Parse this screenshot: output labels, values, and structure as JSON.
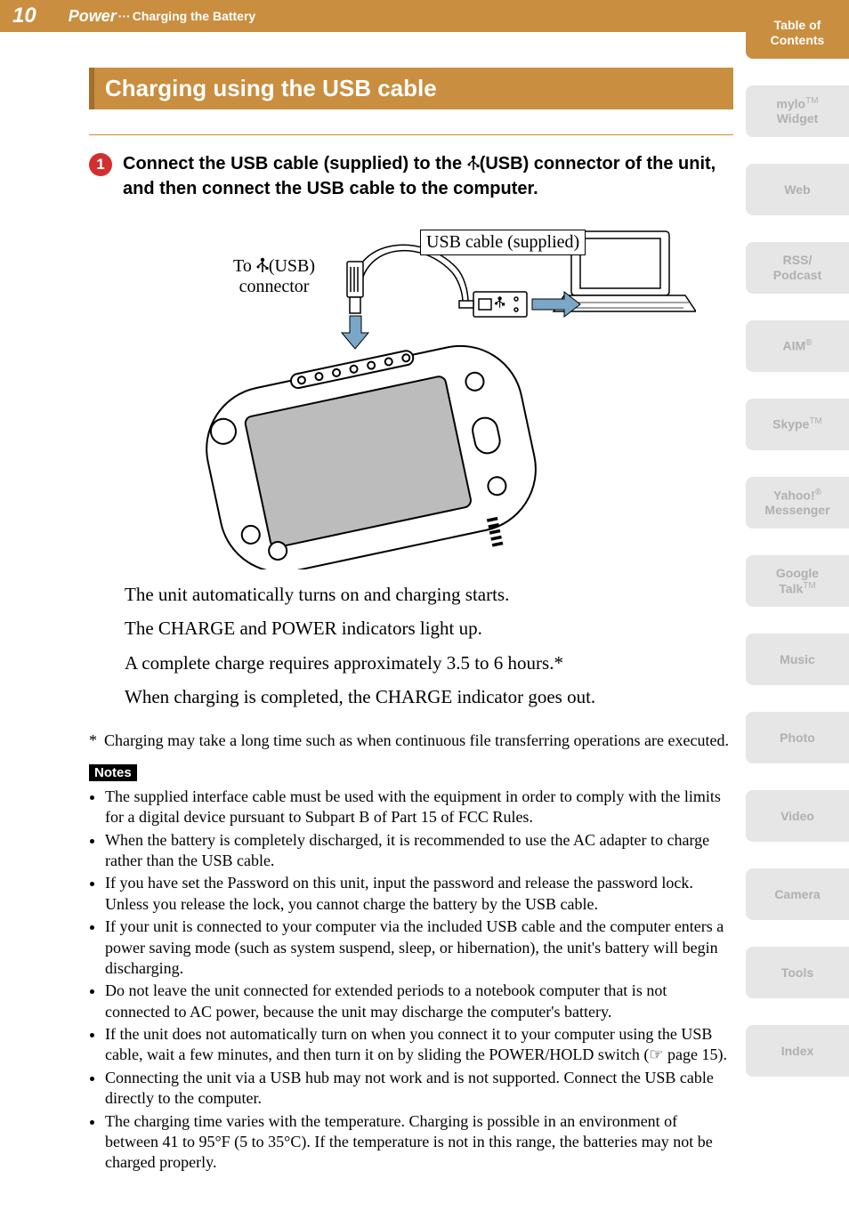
{
  "header": {
    "page_number": "10",
    "section": "Power",
    "separator": "···",
    "subsection": "Charging the Battery"
  },
  "section_title": "Charging using the USB cable",
  "step": {
    "number": "1",
    "text_before_icon": "Connect the USB cable (supplied) to the ",
    "text_after_icon": "(USB) connector of the unit, and then connect the USB cable to the computer."
  },
  "diagram": {
    "label_connector_l1": "To ",
    "label_connector_l2": "(USB)",
    "label_connector_l3": "connector",
    "label_cable": "USB cable (supplied)"
  },
  "body_lines": [
    "The unit automatically turns on and charging starts.",
    "The CHARGE and POWER indicators light up.",
    "A complete charge requires approximately 3.5 to 6 hours.*",
    "When charging is completed, the CHARGE indicator goes out."
  ],
  "footnote": {
    "star": "*",
    "text": "Charging may take a long time such as when continuous file transferring operations are executed."
  },
  "notes_label": "Notes",
  "notes": [
    "The supplied interface cable must be used with the equipment in order to comply with the limits for a digital device pursuant to Subpart B of Part 15 of FCC Rules.",
    "When the battery is completely discharged, it is recommended to use the AC adapter to charge rather than the USB cable.",
    "If you have set the Password on this unit, input the password and release the password lock. Unless you release the lock, you cannot charge the battery by the USB cable.",
    "If your unit is connected to your computer via the included USB cable and the computer enters a power saving mode (such as system suspend, sleep, or hibernation), the unit's battery will begin discharging.",
    "Do not leave the unit connected for extended periods to a notebook computer that is not connected to AC power, because the unit may discharge the computer's battery.",
    "",
    "Connecting the unit via a USB hub may not work and is not supported. Connect the USB cable directly to the computer.",
    "The charging time varies with the temperature. Charging is possible in an environment of between 41 to 95°F (5 to 35°C). If the temperature is not in this range, the batteries may not be charged properly."
  ],
  "note6": {
    "before": "If the unit does not automatically turn on when you connect it to your computer using the USB cable, wait a few minutes, and then turn it on by sliding the POWER/HOLD switch (",
    "after": " page 15)."
  },
  "side_nav": [
    {
      "label": "Table of Contents",
      "active": true
    },
    {
      "label": "mylo",
      "suffix": "TM",
      "line2": "Widget",
      "active": false
    },
    {
      "label": "Web",
      "active": false
    },
    {
      "label": "RSS/",
      "line2": "Podcast",
      "active": false
    },
    {
      "label": "AIM",
      "suffix": "®",
      "active": false
    },
    {
      "label": "Skype",
      "suffix": "TM",
      "active": false
    },
    {
      "label": "Yahoo!",
      "suffix": "®",
      "line2": "Messenger",
      "active": false
    },
    {
      "label": "Google",
      "line2": "Talk",
      "line2suffix": "TM",
      "active": false
    },
    {
      "label": "Music",
      "active": false
    },
    {
      "label": "Photo",
      "active": false
    },
    {
      "label": "Video",
      "active": false
    },
    {
      "label": "Camera",
      "active": false
    },
    {
      "label": "Tools",
      "active": false
    },
    {
      "label": "Index",
      "active": false
    }
  ],
  "colors": {
    "brand": "#c98e3f",
    "brand_dark": "#a0702c",
    "nav_inactive_bg": "#e6e6e6",
    "nav_inactive_fg": "#b0b0b0",
    "step_badge": "#d32f2f"
  }
}
